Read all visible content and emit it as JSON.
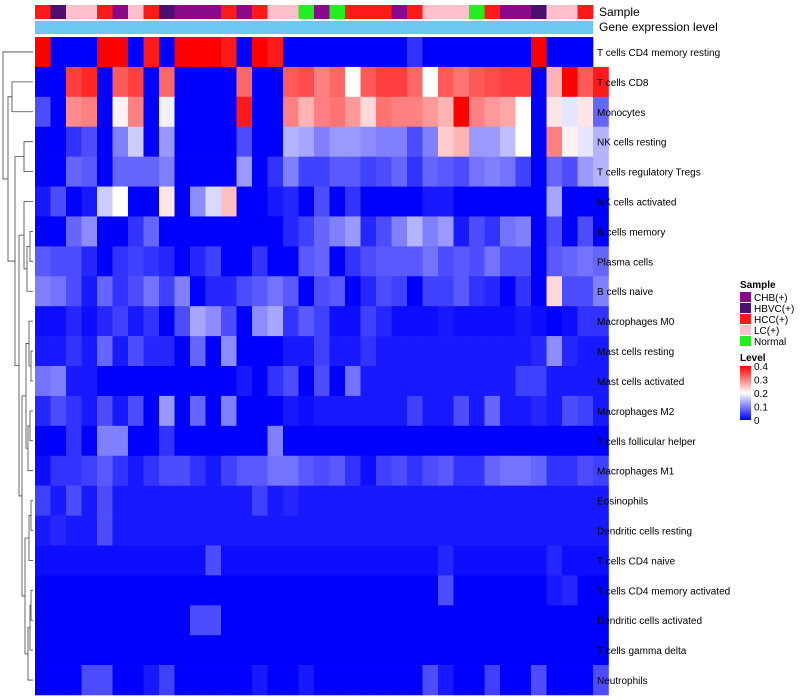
{
  "chart_data": {
    "type": "heatmap",
    "title": "",
    "annotation_tracks": [
      "Sample",
      "Gene expression level"
    ],
    "rows": [
      "T cells CD4 memory resting",
      "T cells CD8",
      "Monocytes",
      "NK cells resting",
      "T cells regulatory  Tregs",
      "NK cells activated",
      "B cells memory",
      "Plasma cells",
      "B cells naive",
      "Macrophages M0",
      "Mast cells resting",
      "Mast cells activated",
      "Macrophages M2",
      "T cells follicular helper",
      "Macrophages M1",
      "Eosinophils",
      "Dendritic cells resting",
      "T cells CD4 naive",
      "T cells CD4 memory activated",
      "Dendritic cells activated",
      "T cells gamma delta",
      "Neutrophils"
    ],
    "sample_groups": [
      "HCC(+)",
      "HBVC(+)",
      "LC(+)",
      "LC(+)",
      "HCC(+)",
      "CHB(+)",
      "LC(+)",
      "HCC(+)",
      "HBVC(+)",
      "CHB(+)",
      "CHB(+)",
      "CHB(+)",
      "HCC(+)",
      "CHB(+)",
      "HCC(+)",
      "LC(+)",
      "LC(+)",
      "Normal",
      "CHB(+)",
      "Normal",
      "HCC(+)",
      "HCC(+)",
      "HCC(+)",
      "CHB(+)",
      "HCC(+)",
      "LC(+)",
      "LC(+)",
      "LC(+)",
      "Normal",
      "HCC(+)",
      "CHB(+)",
      "CHB(+)",
      "HBVC(+)",
      "LC(+)",
      "LC(+)",
      "HCC(+)"
    ],
    "gene_expression_color": "#6cc8f0",
    "values": [
      [
        0.4,
        0.0,
        0.0,
        0.0,
        0.4,
        0.4,
        0.0,
        0.38,
        0.0,
        0.4,
        0.4,
        0.4,
        0.38,
        0.0,
        0.4,
        0.38,
        0.0,
        0.0,
        0.0,
        0.0,
        0.0,
        0.0,
        0.0,
        0.0,
        0.04,
        0.0,
        0.0,
        0.0,
        0.0,
        0.0,
        0.0,
        0.0,
        0.4,
        0.0,
        0.0,
        0.0
      ],
      [
        0.0,
        0.0,
        0.35,
        0.37,
        0.0,
        0.33,
        0.35,
        0.0,
        0.32,
        0.0,
        0.0,
        0.0,
        0.0,
        0.32,
        0.0,
        0.0,
        0.33,
        0.34,
        0.3,
        0.32,
        0.2,
        0.33,
        0.35,
        0.35,
        0.32,
        0.2,
        0.33,
        0.31,
        0.33,
        0.34,
        0.35,
        0.35,
        0.0,
        0.26,
        0.4,
        0.33,
        0.38
      ],
      [
        0.06,
        0.0,
        0.29,
        0.3,
        0.0,
        0.21,
        0.3,
        0.0,
        0.19,
        0.0,
        0.0,
        0.0,
        0.0,
        0.38,
        0.0,
        0.0,
        0.3,
        0.26,
        0.3,
        0.31,
        0.28,
        0.23,
        0.31,
        0.3,
        0.3,
        0.28,
        0.26,
        0.4,
        0.3,
        0.28,
        0.27,
        0.2,
        0.0,
        0.22,
        0.18,
        0.22,
        0.08
      ],
      [
        0.0,
        0.0,
        0.04,
        0.06,
        0.0,
        0.1,
        0.16,
        0.0,
        0.12,
        0.0,
        0.0,
        0.0,
        0.0,
        0.06,
        0.0,
        0.0,
        0.14,
        0.13,
        0.1,
        0.12,
        0.12,
        0.11,
        0.1,
        0.1,
        0.06,
        0.1,
        0.24,
        0.26,
        0.12,
        0.12,
        0.15,
        0.2,
        0.0,
        0.3,
        0.21,
        0.18,
        0.14
      ],
      [
        0.0,
        0.0,
        0.08,
        0.07,
        0.0,
        0.08,
        0.08,
        0.08,
        0.1,
        0.0,
        0.0,
        0.0,
        0.0,
        0.12,
        0.0,
        0.04,
        0.1,
        0.05,
        0.05,
        0.07,
        0.07,
        0.05,
        0.06,
        0.08,
        0.04,
        0.08,
        0.07,
        0.06,
        0.09,
        0.1,
        0.09,
        0.05,
        0.0,
        0.08,
        0.06,
        0.12,
        0.14
      ],
      [
        0.02,
        0.06,
        0.0,
        0.02,
        0.16,
        0.2,
        0.0,
        0.0,
        0.22,
        0.0,
        0.11,
        0.17,
        0.25,
        0.0,
        0.0,
        0.02,
        0.03,
        0.0,
        0.06,
        0.0,
        0.04,
        0.0,
        0.0,
        0.0,
        0.0,
        0.02,
        0.02,
        0.0,
        0.0,
        0.0,
        0.0,
        0.0,
        0.0,
        0.13,
        0.0,
        0.0,
        0.0
      ],
      [
        0.0,
        0.0,
        0.08,
        0.11,
        0.0,
        0.0,
        0.04,
        0.08,
        0.0,
        0.0,
        0.0,
        0.0,
        0.0,
        0.0,
        0.0,
        0.0,
        0.03,
        0.05,
        0.08,
        0.1,
        0.12,
        0.03,
        0.06,
        0.1,
        0.14,
        0.1,
        0.12,
        0.02,
        0.06,
        0.04,
        0.09,
        0.1,
        0.0,
        0.06,
        0.0,
        0.06,
        0.0
      ],
      [
        0.07,
        0.06,
        0.06,
        0.03,
        0.0,
        0.04,
        0.05,
        0.04,
        0.03,
        0.0,
        0.03,
        0.05,
        0.0,
        0.0,
        0.04,
        0.0,
        0.0,
        0.07,
        0.08,
        0.0,
        0.04,
        0.06,
        0.07,
        0.07,
        0.07,
        0.09,
        0.06,
        0.07,
        0.06,
        0.09,
        0.06,
        0.06,
        0.0,
        0.07,
        0.08,
        0.09,
        0.08
      ],
      [
        0.1,
        0.09,
        0.06,
        0.02,
        0.08,
        0.04,
        0.06,
        0.09,
        0.05,
        0.1,
        0.0,
        0.03,
        0.03,
        0.06,
        0.07,
        0.09,
        0.07,
        0.0,
        0.06,
        0.07,
        0.0,
        0.03,
        0.06,
        0.05,
        0.0,
        0.05,
        0.05,
        0.07,
        0.04,
        0.03,
        0.0,
        0.04,
        0.0,
        0.23,
        0.06,
        0.06,
        0.1
      ],
      [
        0.01,
        0.01,
        0.03,
        0.01,
        0.03,
        0.05,
        0.02,
        0.04,
        0.0,
        0.06,
        0.13,
        0.11,
        0.06,
        0.0,
        0.11,
        0.13,
        0.04,
        0.07,
        0.05,
        0.01,
        0.01,
        0.05,
        0.03,
        0.01,
        0.01,
        0.01,
        0.02,
        0.01,
        0.01,
        0.01,
        0.01,
        0.02,
        0.01,
        0.0,
        0.01,
        0.04,
        0.04
      ],
      [
        0.02,
        0.02,
        0.04,
        0.02,
        0.08,
        0.02,
        0.06,
        0.03,
        0.03,
        0.0,
        0.08,
        0.0,
        0.11,
        0.0,
        0.0,
        0.0,
        0.02,
        0.02,
        0.05,
        0.02,
        0.02,
        0.04,
        0.02,
        0.02,
        0.02,
        0.02,
        0.02,
        0.02,
        0.02,
        0.02,
        0.02,
        0.02,
        0.03,
        0.11,
        0.03,
        0.02,
        0.02
      ],
      [
        0.09,
        0.1,
        0.02,
        0.02,
        0.0,
        0.0,
        0.0,
        0.0,
        0.0,
        0.0,
        0.0,
        0.0,
        0.0,
        0.02,
        0.0,
        0.04,
        0.06,
        0.0,
        0.06,
        0.0,
        0.09,
        0.02,
        0.02,
        0.02,
        0.02,
        0.02,
        0.02,
        0.02,
        0.02,
        0.02,
        0.02,
        0.05,
        0.05,
        0.02,
        0.02,
        0.02,
        0.02
      ],
      [
        0.03,
        0.06,
        0.04,
        0.02,
        0.06,
        0.02,
        0.06,
        0.0,
        0.12,
        0.0,
        0.08,
        0.0,
        0.1,
        0.0,
        0.0,
        0.0,
        0.02,
        0.01,
        0.02,
        0.02,
        0.02,
        0.02,
        0.02,
        0.02,
        0.05,
        0.02,
        0.02,
        0.06,
        0.02,
        0.08,
        0.02,
        0.02,
        0.03,
        0.02,
        0.06,
        0.05,
        0.02
      ],
      [
        0.0,
        0.0,
        0.04,
        0.0,
        0.1,
        0.1,
        0.0,
        0.0,
        0.04,
        0.0,
        0.0,
        0.0,
        0.0,
        0.0,
        0.0,
        0.1,
        0.0,
        0.0,
        0.0,
        0.0,
        0.0,
        0.0,
        0.0,
        0.0,
        0.0,
        0.0,
        0.0,
        0.0,
        0.0,
        0.0,
        0.0,
        0.0,
        0.0,
        0.0,
        0.0,
        0.0,
        0.0
      ],
      [
        0.01,
        0.04,
        0.04,
        0.05,
        0.07,
        0.04,
        0.02,
        0.04,
        0.06,
        0.06,
        0.04,
        0.02,
        0.05,
        0.07,
        0.07,
        0.09,
        0.09,
        0.07,
        0.06,
        0.07,
        0.04,
        0.01,
        0.05,
        0.06,
        0.04,
        0.06,
        0.07,
        0.04,
        0.04,
        0.08,
        0.09,
        0.09,
        0.08,
        0.04,
        0.04,
        0.06,
        0.05
      ],
      [
        0.05,
        0.02,
        0.06,
        0.02,
        0.06,
        0.02,
        0.02,
        0.02,
        0.02,
        0.02,
        0.02,
        0.02,
        0.02,
        0.02,
        0.05,
        0.02,
        0.03,
        0.02,
        0.02,
        0.02,
        0.02,
        0.02,
        0.02,
        0.02,
        0.02,
        0.02,
        0.02,
        0.02,
        0.02,
        0.02,
        0.02,
        0.02,
        0.02,
        0.02,
        0.02,
        0.02,
        0.02
      ],
      [
        0.02,
        0.03,
        0.02,
        0.02,
        0.06,
        0.02,
        0.02,
        0.02,
        0.02,
        0.02,
        0.02,
        0.02,
        0.02,
        0.02,
        0.02,
        0.02,
        0.02,
        0.02,
        0.02,
        0.02,
        0.02,
        0.02,
        0.02,
        0.02,
        0.02,
        0.02,
        0.02,
        0.02,
        0.02,
        0.02,
        0.02,
        0.02,
        0.02,
        0.02,
        0.02,
        0.02,
        0.02
      ],
      [
        0.01,
        0.01,
        0.01,
        0.01,
        0.01,
        0.01,
        0.01,
        0.01,
        0.01,
        0.01,
        0.01,
        0.06,
        0.01,
        0.01,
        0.01,
        0.01,
        0.01,
        0.01,
        0.01,
        0.01,
        0.01,
        0.01,
        0.01,
        0.01,
        0.01,
        0.01,
        0.03,
        0.01,
        0.01,
        0.01,
        0.01,
        0.01,
        0.01,
        0.03,
        0.01,
        0.01,
        0.01
      ],
      [
        0.0,
        0.0,
        0.0,
        0.0,
        0.0,
        0.0,
        0.0,
        0.0,
        0.0,
        0.0,
        0.0,
        0.0,
        0.0,
        0.0,
        0.0,
        0.0,
        0.0,
        0.0,
        0.0,
        0.0,
        0.0,
        0.0,
        0.0,
        0.0,
        0.0,
        0.0,
        0.06,
        0.0,
        0.0,
        0.0,
        0.0,
        0.0,
        0.0,
        0.02,
        0.03,
        0.0,
        0.0
      ],
      [
        0.0,
        0.0,
        0.0,
        0.0,
        0.0,
        0.0,
        0.0,
        0.0,
        0.0,
        0.0,
        0.06,
        0.06,
        0.0,
        0.0,
        0.0,
        0.0,
        0.0,
        0.0,
        0.0,
        0.0,
        0.0,
        0.0,
        0.0,
        0.0,
        0.0,
        0.0,
        0.0,
        0.0,
        0.0,
        0.0,
        0.0,
        0.0,
        0.0,
        0.0,
        0.0,
        0.0,
        0.0
      ],
      [
        0.0,
        0.0,
        0.0,
        0.0,
        0.0,
        0.0,
        0.0,
        0.0,
        0.0,
        0.0,
        0.0,
        0.0,
        0.0,
        0.0,
        0.0,
        0.0,
        0.0,
        0.0,
        0.0,
        0.0,
        0.0,
        0.0,
        0.0,
        0.0,
        0.0,
        0.0,
        0.0,
        0.0,
        0.0,
        0.0,
        0.0,
        0.0,
        0.0,
        0.0,
        0.0,
        0.0,
        0.0
      ],
      [
        0.0,
        0.0,
        0.0,
        0.06,
        0.06,
        0.0,
        0.0,
        0.02,
        0.05,
        0.0,
        0.0,
        0.0,
        0.0,
        0.0,
        0.02,
        0.0,
        0.0,
        0.02,
        0.0,
        0.0,
        0.0,
        0.0,
        0.0,
        0.0,
        0.0,
        0.06,
        0.02,
        0.0,
        0.0,
        0.05,
        0.0,
        0.0,
        0.06,
        0.0,
        0.0,
        0.0,
        0.06
      ]
    ],
    "legends": {
      "sample": {
        "title": "Sample",
        "entries": [
          {
            "label": "CHB(+)",
            "color": "#8b0a8b"
          },
          {
            "label": "HBVC(+)",
            "color": "#4b1070"
          },
          {
            "label": "HCC(+)",
            "color": "#ff1a1a"
          },
          {
            "label": "LC(+)",
            "color": "#ffc0cb"
          },
          {
            "label": "Normal",
            "color": "#22ee22"
          }
        ]
      },
      "level": {
        "title": "Level",
        "ticks": [
          "0.4",
          "0.3",
          "0.2",
          "0.1",
          "0"
        ],
        "tick_values": [
          0.4,
          0.3,
          0.2,
          0.1,
          0
        ],
        "range": [
          0,
          0.4
        ]
      }
    },
    "color_scale": {
      "low": "#0000ff",
      "mid": "#ffffff",
      "high": "#ff0000",
      "mid_value": 0.2
    }
  }
}
